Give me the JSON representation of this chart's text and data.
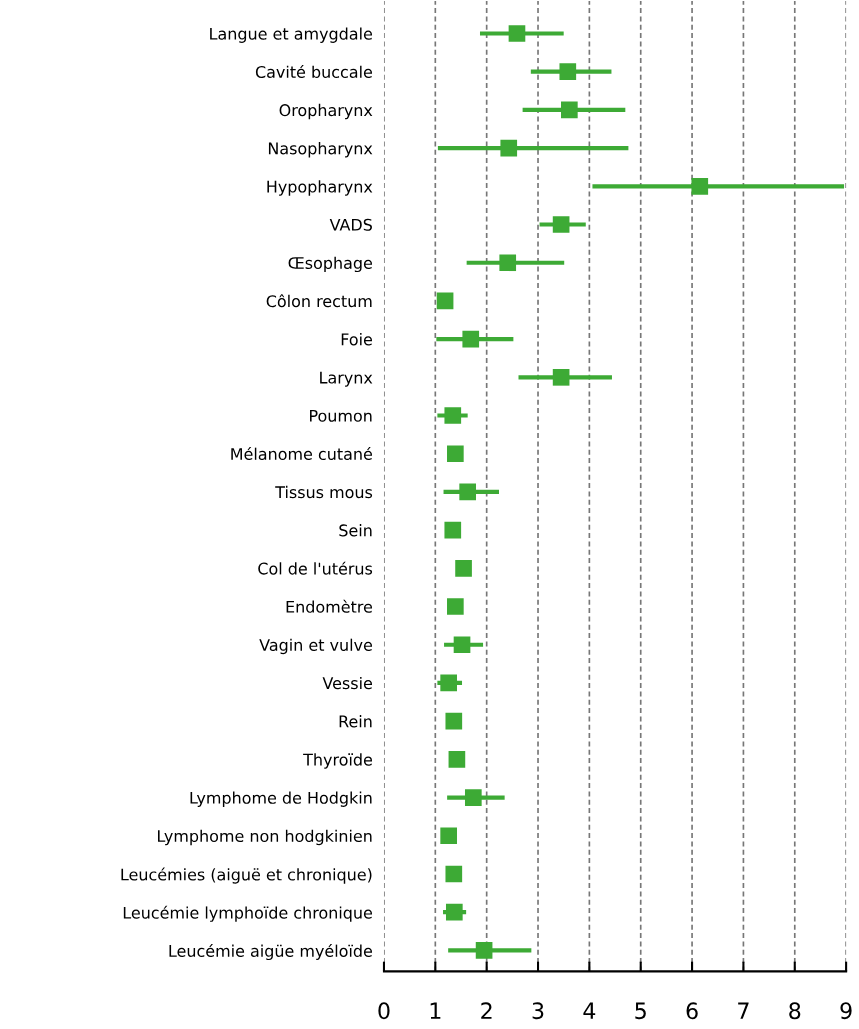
{
  "chart_data": {
    "type": "scatter",
    "orientation": "horizontal",
    "categories": [
      "Langue et amygdale",
      "Cavité buccale",
      "Oropharynx",
      "Nasopharynx",
      "Hypopharynx",
      "VADS",
      "Œsophage",
      "Côlon rectum",
      "Foie",
      "Larynx",
      "Poumon",
      "Mélanome cutané",
      "Tissus mous",
      "Sein",
      "Col de l'utérus",
      "Endomètre",
      "Vagin et vulve",
      "Vessie",
      "Rein",
      "Thyroïde",
      "Lymphome de Hodgkin",
      "Lymphome non hodgkinien",
      "Leucémies (aiguë et chronique)",
      "Leucémie lymphoïde chronique",
      "Leucémie aigüe myéloïde"
    ],
    "series": [
      {
        "color": "#3daa35",
        "marker": "square",
        "values": [
          2.59,
          3.58,
          3.61,
          2.43,
          6.15,
          3.45,
          2.41,
          1.19,
          1.69,
          3.45,
          1.34,
          1.39,
          1.63,
          1.34,
          1.55,
          1.39,
          1.52,
          1.26,
          1.36,
          1.42,
          1.74,
          1.26,
          1.36,
          1.37,
          1.95
        ],
        "errors": [
          [
            1.87,
            3.5
          ],
          [
            2.86,
            4.43
          ],
          [
            2.7,
            4.7
          ],
          [
            1.05,
            4.76
          ],
          [
            4.06,
            8.96
          ],
          [
            3.03,
            3.93
          ],
          [
            1.61,
            3.51
          ],
          null,
          [
            1.02,
            2.52
          ],
          [
            2.62,
            4.44
          ],
          [
            1.04,
            1.63
          ],
          null,
          [
            1.16,
            2.24
          ],
          null,
          null,
          null,
          [
            1.17,
            1.93
          ],
          [
            1.04,
            1.52
          ],
          null,
          null,
          [
            1.23,
            2.35
          ],
          null,
          null,
          [
            1.15,
            1.6
          ],
          [
            1.25,
            2.87
          ]
        ]
      }
    ],
    "xlim": [
      0,
      9
    ],
    "xticks": [
      0,
      1,
      2,
      3,
      4,
      5,
      6,
      7,
      8,
      9
    ],
    "grid": "x",
    "legend": false
  }
}
